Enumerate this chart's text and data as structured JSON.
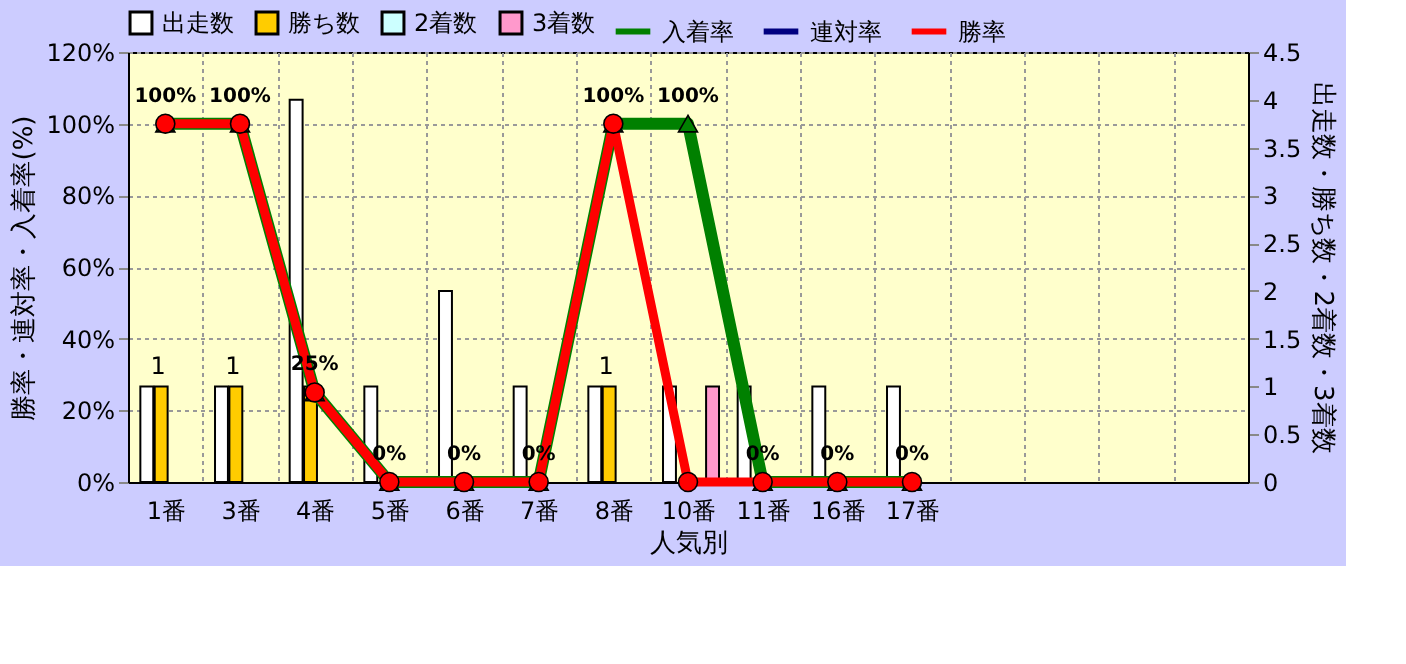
{
  "chart_data": {
    "type": "bar",
    "xlabel": "人気別",
    "ylabel": "勝率・連対率・入着率(%)",
    "y2label": "出走数・勝ち数・2着数・3着数",
    "categories": [
      "1番",
      "3番",
      "4番",
      "5番",
      "6番",
      "7番",
      "8番",
      "10番",
      "11番",
      "16番",
      "17番",
      null,
      null,
      null,
      null
    ],
    "series": [
      {
        "name": "出走数",
        "axis": "y2",
        "color": "#ffffff",
        "values": [
          1,
          1,
          4,
          1,
          2,
          1,
          1,
          1,
          1,
          1,
          1,
          null,
          null,
          null,
          null
        ]
      },
      {
        "name": "勝ち数",
        "axis": "y2",
        "color": "#ffcc00",
        "values": [
          1,
          1,
          1,
          0,
          0,
          0,
          1,
          0,
          0,
          0,
          0,
          null,
          null,
          null,
          null
        ],
        "value_labels": [
          "1",
          "1",
          null,
          null,
          null,
          null,
          "1",
          null,
          null,
          null,
          null,
          null,
          null,
          null,
          null
        ]
      },
      {
        "name": "2着数",
        "axis": "y2",
        "color": "#ccffff",
        "values": [
          0,
          0,
          0,
          0,
          0,
          0,
          0,
          0,
          0,
          0,
          0,
          null,
          null,
          null,
          null
        ]
      },
      {
        "name": "3着数",
        "axis": "y2",
        "color": "#ff99cc",
        "values": [
          0,
          0,
          0,
          0,
          0,
          0,
          0,
          1,
          0,
          0,
          0,
          null,
          null,
          null,
          null
        ]
      },
      {
        "name": "入着率",
        "type": "line",
        "marker": "triangle",
        "color": "#008000",
        "values": [
          100,
          100,
          25,
          0,
          0,
          0,
          100,
          100,
          0,
          0,
          0,
          null,
          null,
          null,
          null
        ],
        "value_labels": [
          "100%",
          "100%",
          "25%",
          "0%",
          "0%",
          "0%",
          "100%",
          "100%",
          "0%",
          "0%",
          "0%",
          null,
          null,
          null,
          null
        ]
      },
      {
        "name": "連対率",
        "type": "line",
        "marker": "diamond",
        "color": "#000080",
        "values": [
          null,
          null,
          null,
          null,
          null,
          null,
          null,
          null,
          null,
          null,
          null,
          null,
          null,
          null,
          null
        ]
      },
      {
        "name": "勝率",
        "type": "line",
        "marker": "circle",
        "color": "#ff0000",
        "values": [
          100,
          100,
          25,
          0,
          0,
          0,
          100,
          0,
          0,
          0,
          0,
          null,
          null,
          null,
          null
        ]
      }
    ],
    "ylim": [
      0,
      120
    ],
    "yticks": [
      {
        "value": 0,
        "label": "0%"
      },
      {
        "value": 20,
        "label": "20%"
      },
      {
        "value": 40,
        "label": "40%"
      },
      {
        "value": 60,
        "label": "60%"
      },
      {
        "value": 80,
        "label": "80%"
      },
      {
        "value": 100,
        "label": "100%"
      },
      {
        "value": 120,
        "label": "120%"
      }
    ],
    "y2lim": [
      0,
      4.5
    ],
    "y2ticks": [
      0,
      0.5,
      1,
      1.5,
      2,
      2.5,
      3,
      3.5,
      4,
      4.5
    ],
    "grid": true,
    "legend": "top"
  }
}
